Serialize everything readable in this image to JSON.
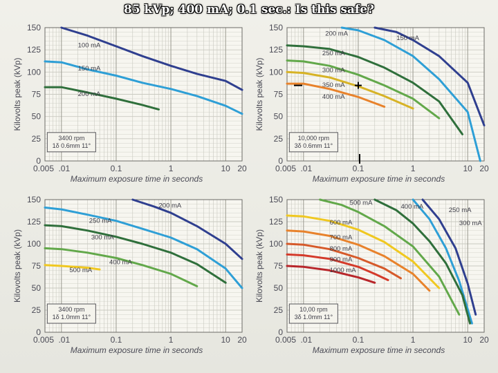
{
  "slide": {
    "title": "85 kVp; 400 mA; 0.1 sec.: Is this safe?"
  },
  "chart_data": [
    {
      "type": "line",
      "ylabel": "Kilovolts peak (kVp)",
      "xlabel": "Maximum exposure time in seconds",
      "x_scale": "log",
      "xlim": [
        0.005,
        20
      ],
      "ylim": [
        0,
        150
      ],
      "x_ticks": [
        "0.005",
        ".01",
        "0.1",
        "1",
        "10",
        "20"
      ],
      "y_ticks": [
        "0",
        "25",
        "50",
        "75",
        "100",
        "125",
        "150"
      ],
      "grid": true,
      "note": [
        "3400 rpm",
        "1δ 0.6mm 11°"
      ],
      "series": [
        {
          "name": "100 mA",
          "color": "#2f3f8f",
          "x": [
            0.01,
            0.03,
            0.1,
            0.3,
            1,
            3,
            10,
            20
          ],
          "y": [
            150,
            141,
            129,
            118,
            107,
            98,
            90,
            80
          ]
        },
        {
          "name": "150 mA",
          "color": "#2e9fd6",
          "x": [
            0.005,
            0.01,
            0.03,
            0.1,
            0.3,
            1,
            3,
            10,
            20
          ],
          "y": [
            112,
            111,
            103,
            96,
            88,
            81,
            73,
            62,
            53
          ]
        },
        {
          "name": "200 mA",
          "color": "#2f6f3b",
          "x": [
            0.005,
            0.01,
            0.03,
            0.1,
            0.3,
            0.6
          ],
          "y": [
            83,
            83,
            77,
            70,
            63,
            58
          ]
        }
      ]
    },
    {
      "type": "line",
      "ylabel": "Kilovolts peak (kVp)",
      "xlabel": "Maximum exposure time in seconds",
      "x_scale": "log",
      "xlim": [
        0.005,
        20
      ],
      "ylim": [
        0,
        150
      ],
      "x_ticks": [
        "0.005",
        ".01",
        "0.1",
        "1",
        "10",
        "20"
      ],
      "y_ticks": [
        "0",
        "25",
        "50",
        "75",
        "100",
        "125",
        "150"
      ],
      "grid": true,
      "note": [
        "10,000 rpm",
        "3δ 0.6mm 11°"
      ],
      "marker": {
        "x": 0.1,
        "y": 85
      },
      "series": [
        {
          "name": "150 mA",
          "color": "#2f3f8f",
          "x": [
            0.2,
            0.5,
            1,
            3,
            10,
            20
          ],
          "y": [
            150,
            145,
            136,
            118,
            88,
            40
          ]
        },
        {
          "name": "200 mA",
          "color": "#2e9fd6",
          "x": [
            0.05,
            0.1,
            0.3,
            1,
            3,
            10,
            17
          ],
          "y": [
            150,
            147,
            136,
            118,
            92,
            55,
            0
          ]
        },
        {
          "name": "250 mA",
          "color": "#2f6f3b",
          "x": [
            0.005,
            0.01,
            0.03,
            0.1,
            0.3,
            1,
            3,
            8
          ],
          "y": [
            130,
            129,
            126,
            117,
            105,
            88,
            67,
            30
          ]
        },
        {
          "name": "300 mA",
          "color": "#62a84a",
          "x": [
            0.005,
            0.01,
            0.03,
            0.1,
            0.3,
            1,
            3
          ],
          "y": [
            113,
            112,
            107,
            97,
            85,
            70,
            48
          ]
        },
        {
          "name": "350 mA",
          "color": "#d7b326",
          "x": [
            0.005,
            0.01,
            0.03,
            0.1,
            0.3,
            1
          ],
          "y": [
            100,
            99,
            94,
            84,
            73,
            59
          ]
        },
        {
          "name": "400 mA",
          "color": "#e8822b",
          "x": [
            0.005,
            0.01,
            0.03,
            0.1,
            0.3
          ],
          "y": [
            87,
            87,
            81,
            72,
            61
          ]
        }
      ]
    },
    {
      "type": "line",
      "ylabel": "Kilovolts peak (kVp)",
      "xlabel": "Maximum exposure time in seconds",
      "x_scale": "log",
      "xlim": [
        0.005,
        20
      ],
      "ylim": [
        0,
        150
      ],
      "x_ticks": [
        "0.005",
        ".01",
        "0.1",
        "1",
        "10",
        "20"
      ],
      "y_ticks": [
        "0",
        "25",
        "50",
        "75",
        "100",
        "125",
        "150"
      ],
      "grid": true,
      "note": [
        "3400 rpm",
        "1δ 1.0mm 11°"
      ],
      "series": [
        {
          "name": "200 mA",
          "color": "#2f3f8f",
          "x": [
            0.2,
            0.5,
            1,
            3,
            10,
            20
          ],
          "y": [
            150,
            142,
            135,
            120,
            100,
            83
          ]
        },
        {
          "name": "250 mA",
          "color": "#2e9fd6",
          "x": [
            0.005,
            0.01,
            0.03,
            0.1,
            0.3,
            1,
            3,
            10,
            20
          ],
          "y": [
            141,
            139,
            133,
            126,
            117,
            107,
            94,
            72,
            50
          ]
        },
        {
          "name": "300 mA",
          "color": "#2f6f3b",
          "x": [
            0.005,
            0.01,
            0.03,
            0.1,
            0.3,
            1,
            3,
            10
          ],
          "y": [
            121,
            120,
            115,
            108,
            100,
            90,
            77,
            56
          ]
        },
        {
          "name": "400 mA",
          "color": "#62a84a",
          "x": [
            0.005,
            0.01,
            0.03,
            0.1,
            0.3,
            1,
            3
          ],
          "y": [
            95,
            94,
            90,
            84,
            76,
            66,
            52
          ]
        },
        {
          "name": "500 mA",
          "color": "#f0c820",
          "x": [
            0.005,
            0.01,
            0.03,
            0.05
          ],
          "y": [
            76,
            75,
            73,
            71
          ]
        }
      ]
    },
    {
      "type": "line",
      "ylabel": "Kilovolts peak (kVp)",
      "xlabel": "Maximum exposure time in seconds",
      "x_scale": "log",
      "xlim": [
        0.005,
        20
      ],
      "ylim": [
        0,
        150
      ],
      "x_ticks": [
        "0.005",
        ".01",
        "0.1",
        "1",
        "10",
        "20"
      ],
      "y_ticks": [
        "0",
        "25",
        "50",
        "75",
        "100",
        "125",
        "150"
      ],
      "grid": true,
      "note": [
        "10,00 rpm",
        "3δ 1.0mm 11°"
      ],
      "series": [
        {
          "name": "250 mA",
          "color": "#2f3f8f",
          "x": [
            1.5,
            3,
            6,
            10,
            14
          ],
          "y": [
            150,
            128,
            95,
            55,
            20
          ]
        },
        {
          "name": "300 mA",
          "color": "#2e9fd6",
          "x": [
            1,
            2,
            4,
            7,
            12
          ],
          "y": [
            150,
            128,
            95,
            58,
            10
          ]
        },
        {
          "name": "400 mA",
          "color": "#2f6f3b",
          "x": [
            0.2,
            0.5,
            1,
            2,
            4,
            8,
            11
          ],
          "y": [
            150,
            138,
            123,
            103,
            78,
            42,
            10
          ]
        },
        {
          "name": "500 mA",
          "color": "#62a84a",
          "x": [
            0.02,
            0.05,
            0.1,
            0.3,
            1,
            3,
            7
          ],
          "y": [
            150,
            144,
            136,
            120,
            97,
            63,
            20
          ]
        },
        {
          "name": "600 mA",
          "color": "#f0c820",
          "x": [
            0.005,
            0.01,
            0.03,
            0.1,
            0.3,
            1,
            3
          ],
          "y": [
            132,
            131,
            126,
            116,
            102,
            80,
            50
          ]
        },
        {
          "name": "700 mA",
          "color": "#e8822b",
          "x": [
            0.005,
            0.01,
            0.03,
            0.1,
            0.3,
            1,
            2
          ],
          "y": [
            115,
            114,
            109,
            99,
            86,
            66,
            47
          ]
        },
        {
          "name": "800 mA",
          "color": "#d65a2a",
          "x": [
            0.005,
            0.01,
            0.03,
            0.1,
            0.3,
            0.6
          ],
          "y": [
            100,
            99,
            94,
            84,
            72,
            61
          ]
        },
        {
          "name": "900 mA",
          "color": "#d43a2a",
          "x": [
            0.005,
            0.01,
            0.03,
            0.1,
            0.2,
            0.35
          ],
          "y": [
            88,
            87,
            83,
            74,
            66,
            59
          ]
        },
        {
          "name": "1000 mA",
          "color": "#b8262a",
          "x": [
            0.005,
            0.01,
            0.03,
            0.1,
            0.2
          ],
          "y": [
            75,
            74,
            70,
            62,
            56
          ]
        }
      ]
    }
  ]
}
